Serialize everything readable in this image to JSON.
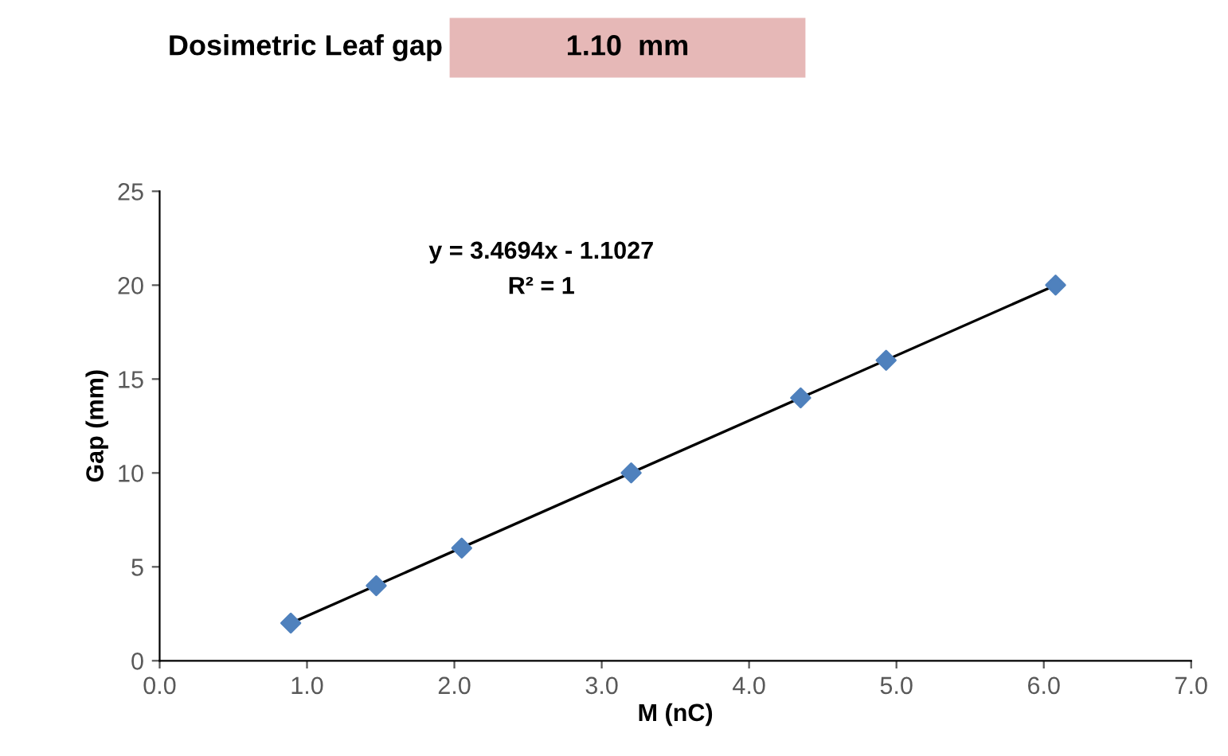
{
  "chart_data": {
    "type": "scatter",
    "xlabel": "M (nC)",
    "ylabel": "Gap (mm)",
    "annotations": [
      "Dosimetric Leaf gap",
      "1.10  mm",
      "y = 3.4694x - 1.1027",
      "R² = 1"
    ],
    "series": [
      {
        "color": "#4f81bd",
        "marker": "diamond",
        "x": [
          0.89,
          1.47,
          2.05,
          3.2,
          4.35,
          4.93,
          6.08
        ],
        "values": [
          2,
          4,
          6,
          10,
          14,
          16,
          20
        ]
      },
      {
        "type": "line",
        "color": "#000000",
        "marker": "none",
        "line_style": "solid",
        "x": [
          0.89,
          6.08
        ],
        "values": [
          2,
          20
        ]
      }
    ],
    "xlim": [
      0,
      7
    ],
    "xticks": [
      {
        "value": 0,
        "label": "0.0"
      },
      {
        "value": 1,
        "label": "1.0"
      },
      {
        "value": 2,
        "label": "2.0"
      },
      {
        "value": 3,
        "label": "3.0"
      },
      {
        "value": 4,
        "label": "4.0"
      },
      {
        "value": 5,
        "label": "5.0"
      },
      {
        "value": 6,
        "label": "6.0"
      },
      {
        "value": 7,
        "label": "7.0"
      }
    ],
    "ylim": [
      0,
      25
    ],
    "yticks": [
      0,
      5,
      10,
      15,
      20,
      25
    ],
    "grid": false,
    "legend": false
  }
}
